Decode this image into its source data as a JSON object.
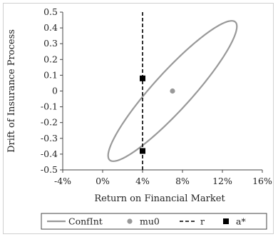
{
  "chart_data": {
    "type": "scatter",
    "xlabel": "Return on Financial Market",
    "ylabel": "Drift of Insurance Process",
    "xlim": [
      -0.04,
      0.16
    ],
    "ylim": [
      -0.5,
      0.5
    ],
    "x_ticks": [
      -0.04,
      0.0,
      0.04,
      0.08,
      0.12,
      0.16
    ],
    "x_tick_labels": [
      "-4%",
      "0%",
      "4%",
      "8%",
      "12%",
      "16%"
    ],
    "y_ticks": [
      0.5,
      0.4,
      0.3,
      0.2,
      0.1,
      0,
      -0.1,
      -0.2,
      -0.3,
      -0.4,
      -0.5
    ],
    "y_tick_labels": [
      "0.5",
      "0.4",
      "0.3",
      "0.2",
      "0.1",
      "0",
      "-0.1",
      "-0.2",
      "-0.3",
      "-0.4",
      "-0.5"
    ],
    "grid": false,
    "legend_placement": "bottom",
    "series": [
      {
        "name": "ConfInt",
        "kind": "ellipse",
        "color": "#999999",
        "center": [
          0.07,
          0.0
        ],
        "x_extent": [
          0.0055,
          0.1345
        ],
        "y_extent": [
          -0.445,
          0.445
        ]
      },
      {
        "name": "mu0",
        "kind": "point",
        "color": "#999999",
        "x": [
          0.07
        ],
        "y": [
          0.0
        ]
      },
      {
        "name": "r",
        "kind": "vline",
        "color": "#000000",
        "x": 0.04
      },
      {
        "name": "a*",
        "kind": "point",
        "color": "#000000",
        "x": [
          0.04,
          0.04
        ],
        "y": [
          0.08,
          -0.38
        ]
      }
    ]
  }
}
